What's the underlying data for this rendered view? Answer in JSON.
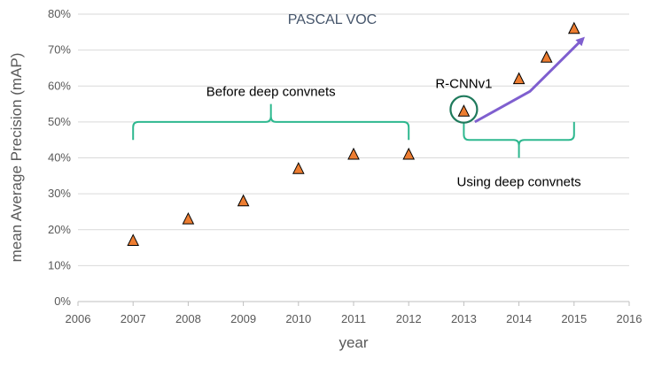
{
  "chart_data": {
    "type": "scatter",
    "title": "PASCAL VOC",
    "xlabel": "year",
    "ylabel": "mean Average Precision (mAP)",
    "xlim": [
      2006,
      2016
    ],
    "ylim": [
      0,
      80
    ],
    "x_ticks": [
      2006,
      2007,
      2008,
      2009,
      2010,
      2011,
      2012,
      2013,
      2014,
      2015,
      2016
    ],
    "y_ticks": [
      0,
      10,
      20,
      30,
      40,
      50,
      60,
      70,
      80
    ],
    "y_tick_labels": [
      "0%",
      "10%",
      "20%",
      "30%",
      "40%",
      "50%",
      "60%",
      "70%",
      "80%"
    ],
    "grid": "horizontal",
    "marker": "triangle",
    "marker_color": "#ed7d31",
    "series": [
      {
        "x": [
          2007,
          2008,
          2009,
          2010,
          2011,
          2012,
          2013,
          2014,
          2014.5,
          2015
        ],
        "y": [
          17,
          23,
          28,
          37,
          41,
          41,
          53,
          62,
          68,
          76
        ]
      }
    ],
    "annotations": {
      "before_label": "Before deep convnets",
      "before_range": [
        2007,
        2012
      ],
      "using_label": "Using deep convnets",
      "using_range": [
        2013,
        2015
      ],
      "rcnn_label": "R-CNNv1",
      "rcnn_point": [
        2013,
        53
      ],
      "brace_color": "#2eb88f",
      "trend_color": "#7f5fcf",
      "circle_color": "#1f7a5c"
    }
  }
}
